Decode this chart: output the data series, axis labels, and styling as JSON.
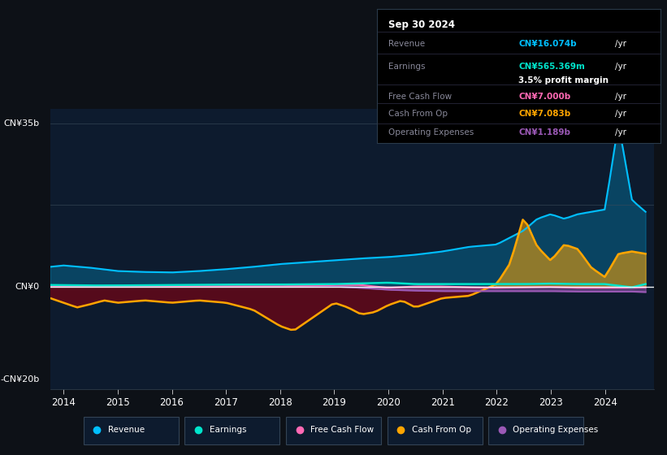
{
  "background_color": "#0d1117",
  "plot_bg_color": "#0d1b2e",
  "revenue_color": "#00bfff",
  "earnings_color": "#00e5cc",
  "fcf_color": "#ff69b4",
  "cashfromop_color": "#ffa500",
  "opex_color": "#9b59b6",
  "info_box": {
    "date": "Sep 30 2024",
    "revenue_label": "Revenue",
    "revenue_value": "CN¥16.074b",
    "revenue_color": "#00bfff",
    "earnings_label": "Earnings",
    "earnings_value": "CN¥565.369m",
    "earnings_color": "#00e5cc",
    "profit_margin": "3.5% profit margin",
    "fcf_label": "Free Cash Flow",
    "fcf_value": "CN¥7.000b",
    "fcf_color": "#ff69b4",
    "cashop_label": "Cash From Op",
    "cashop_value": "CN¥7.083b",
    "cashop_color": "#ffa500",
    "opex_label": "Operating Expenses",
    "opex_value": "CN¥1.189b",
    "opex_color": "#9b59b6"
  },
  "ylim": [
    -22,
    38
  ],
  "zero_line_y": 0,
  "gridline_y": [
    17.5,
    35
  ],
  "legend_labels": [
    "Revenue",
    "Earnings",
    "Free Cash Flow",
    "Cash From Op",
    "Operating Expenses"
  ]
}
